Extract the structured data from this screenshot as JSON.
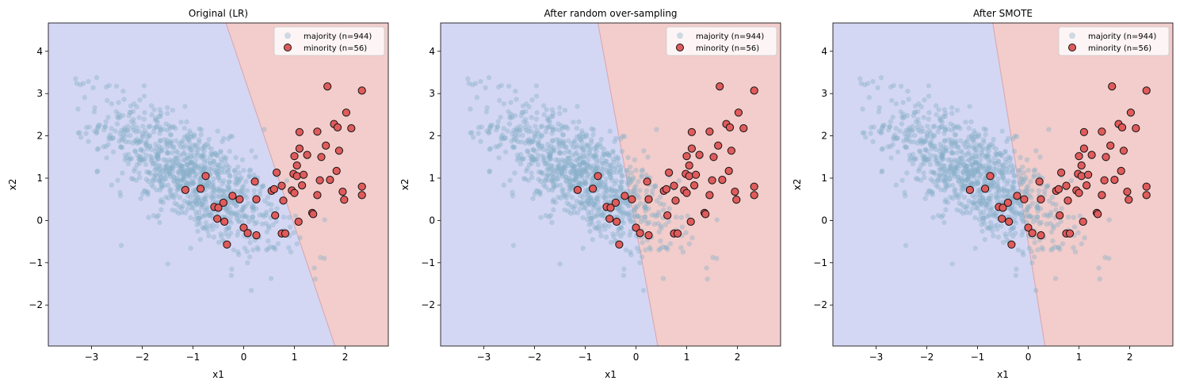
{
  "colors": {
    "region_majority": "#d4d7f3",
    "region_minority": "#f2cdcb",
    "majority_point": "#86aec8",
    "minority_point": "#e05b5b",
    "minority_edge": "#111111",
    "boundary": "#d9a3b0"
  },
  "chart_data": [
    {
      "type": "scatter",
      "title": "Original (LR)",
      "xlabel": "x1",
      "ylabel": "x2",
      "xlim": [
        -3.85,
        2.85
      ],
      "ylim": [
        -2.97,
        4.67
      ],
      "xticks": [
        -3,
        -2,
        -1,
        0,
        1,
        2
      ],
      "yticks": [
        -2,
        -1,
        0,
        1,
        2,
        3,
        4
      ],
      "legend_position": "top-right",
      "decision_boundary": [
        [
          -0.35,
          4.67
        ],
        [
          1.8,
          -2.97
        ]
      ],
      "series": [
        {
          "name": "majority (n=944)",
          "kind": "majority"
        },
        {
          "name": "minority (n=56)",
          "kind": "minority"
        }
      ]
    },
    {
      "type": "scatter",
      "title": "After random over-sampling",
      "xlabel": "x1",
      "ylabel": "x2",
      "xlim": [
        -3.85,
        2.85
      ],
      "ylim": [
        -2.97,
        4.67
      ],
      "xticks": [
        -3,
        -2,
        -1,
        0,
        1,
        2
      ],
      "yticks": [
        -2,
        -1,
        0,
        1,
        2,
        3,
        4
      ],
      "legend_position": "top-right",
      "decision_boundary": [
        [
          -0.75,
          4.67
        ],
        [
          0.43,
          -2.97
        ]
      ],
      "series": [
        {
          "name": "majority (n=944)",
          "kind": "majority"
        },
        {
          "name": "minority (n=56)",
          "kind": "minority"
        }
      ]
    },
    {
      "type": "scatter",
      "title": "After SMOTE",
      "xlabel": "x1",
      "ylabel": "x2",
      "xlim": [
        -3.85,
        2.85
      ],
      "ylim": [
        -2.97,
        4.67
      ],
      "xticks": [
        -3,
        -2,
        -1,
        0,
        1,
        2
      ],
      "yticks": [
        -2,
        -1,
        0,
        1,
        2,
        3,
        4
      ],
      "legend_position": "top-right",
      "decision_boundary": [
        [
          -0.7,
          4.67
        ],
        [
          0.33,
          -2.97
        ]
      ],
      "series": [
        {
          "name": "majority (n=944)",
          "kind": "majority"
        },
        {
          "name": "minority (n=56)",
          "kind": "minority"
        }
      ]
    }
  ],
  "minority_points": [
    [
      -1.15,
      0.72
    ],
    [
      -0.85,
      0.75
    ],
    [
      -0.75,
      1.05
    ],
    [
      -0.58,
      0.32
    ],
    [
      -0.5,
      0.3
    ],
    [
      -0.52,
      0.04
    ],
    [
      -0.38,
      -0.03
    ],
    [
      -0.33,
      -0.57
    ],
    [
      -0.4,
      0.42
    ],
    [
      -0.22,
      0.58
    ],
    [
      -0.08,
      0.5
    ],
    [
      0.0,
      -0.17
    ],
    [
      0.08,
      -0.3
    ],
    [
      0.25,
      -0.35
    ],
    [
      0.22,
      0.92
    ],
    [
      0.25,
      0.5
    ],
    [
      0.55,
      0.7
    ],
    [
      0.6,
      0.74
    ],
    [
      0.65,
      1.13
    ],
    [
      0.62,
      0.12
    ],
    [
      0.75,
      0.82
    ],
    [
      0.78,
      0.47
    ],
    [
      0.75,
      -0.31
    ],
    [
      0.82,
      -0.31
    ],
    [
      0.95,
      0.71
    ],
    [
      0.98,
      1.1
    ],
    [
      1.0,
      0.65
    ],
    [
      1.0,
      1.52
    ],
    [
      1.05,
      1.3
    ],
    [
      1.05,
      1.05
    ],
    [
      1.08,
      -0.03
    ],
    [
      1.1,
      1.7
    ],
    [
      1.1,
      2.09
    ],
    [
      1.15,
      0.83
    ],
    [
      1.18,
      1.08
    ],
    [
      1.25,
      1.55
    ],
    [
      1.35,
      0.18
    ],
    [
      1.37,
      0.15
    ],
    [
      1.45,
      2.1
    ],
    [
      1.45,
      0.6
    ],
    [
      1.53,
      1.5
    ],
    [
      1.62,
      1.77
    ],
    [
      1.65,
      3.17
    ],
    [
      1.7,
      0.96
    ],
    [
      1.78,
      2.28
    ],
    [
      1.83,
      1.17
    ],
    [
      1.85,
      2.2
    ],
    [
      1.88,
      1.65
    ],
    [
      1.95,
      0.68
    ],
    [
      1.98,
      0.49
    ],
    [
      2.02,
      2.55
    ],
    [
      2.12,
      2.18
    ],
    [
      2.33,
      3.07
    ],
    [
      2.33,
      0.8
    ],
    [
      2.33,
      0.6
    ],
    [
      1.5,
      0.95
    ]
  ]
}
